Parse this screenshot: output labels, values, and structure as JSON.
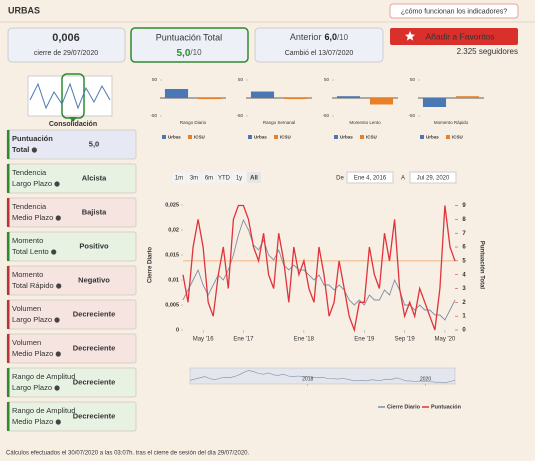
{
  "header": {
    "title": "URBAS",
    "help": "¿cómo funcionan los indicadores?"
  },
  "cards": [
    {
      "value": "0,006",
      "sub": "cierre de 29/07/2020"
    },
    {
      "label": "Puntuación Total",
      "value": "5,0",
      "suffix": "/10"
    },
    {
      "label": "Anterior",
      "value": "6,0",
      "suffix": "/10",
      "sub": "Cambió el 13/07/2020"
    }
  ],
  "favorite": {
    "button": "Añadir a Favoritos",
    "followers": "2.325 seguidores"
  },
  "consolidation": "Consolidación",
  "indicators": [
    {
      "line1": "Puntuación",
      "line2": "Total",
      "value": "5,0",
      "color": "#2e8b2e",
      "border": "#2e8b2e",
      "bg": "#e6e8f4"
    },
    {
      "line1": "Tendencia",
      "line2": "Largo Plazo",
      "value": "Alcista",
      "color": "#2e8b2e",
      "border": "#2e8b2e",
      "bg": "#e7f2e3"
    },
    {
      "line1": "Tendencia",
      "line2": "Medio Plazo",
      "value": "Bajista",
      "color": "#d0312d",
      "border": "#b33",
      "bg": "#f6e4e1"
    },
    {
      "line1": "Momento",
      "line2": "Total Lento",
      "value": "Positivo",
      "color": "#2e8b2e",
      "border": "#2e8b2e",
      "bg": "#e7f2e3"
    },
    {
      "line1": "Momento",
      "line2": "Total Rápido",
      "value": "Negativo",
      "color": "#d0312d",
      "border": "#b33",
      "bg": "#f6e4e1"
    },
    {
      "line1": "Volumen",
      "line2": "Largo Plazo",
      "value": "Decreciente",
      "color": "#d0312d",
      "border": "#b33",
      "bg": "#f6e4e1"
    },
    {
      "line1": "Volumen",
      "line2": "Medio Plazo",
      "value": "Decreciente",
      "color": "#d0312d",
      "border": "#b33",
      "bg": "#f6e4e1"
    },
    {
      "line1": "Rango de Amplitud",
      "line2": "Largo Plazo",
      "value": "Decreciente",
      "color": "#2e8b2e",
      "border": "#2e8b2e",
      "bg": "#e7f2e3"
    },
    {
      "line1": "Rango de Amplitud",
      "line2": "Medio Plazo",
      "value": "Decreciente",
      "color": "#2e8b2e",
      "border": "#2e8b2e",
      "bg": "#e7f2e3"
    }
  ],
  "footer": "Cálculos efectuados el 30/07/2020 a las 03:07h. tras el cierre de sesión del día 29/07/2020.",
  "chart_data": [
    {
      "type": "bar",
      "title": "Rango Diario",
      "categories": [
        "Urbas",
        "ICSU"
      ],
      "values": [
        25,
        -3
      ],
      "colors": [
        "#4a78b5",
        "#e8802a"
      ],
      "ylim": [
        -50,
        50
      ],
      "yticks": [
        -50,
        50
      ]
    },
    {
      "type": "bar",
      "title": "Rango Semanal",
      "categories": [
        "Urbas",
        "ICSU"
      ],
      "values": [
        18,
        -3
      ],
      "colors": [
        "#4a78b5",
        "#e8802a"
      ],
      "ylim": [
        -50,
        50
      ],
      "yticks": [
        -50,
        50
      ]
    },
    {
      "type": "bar",
      "title": "Momento Lento",
      "categories": [
        "Urbas",
        "ICSU"
      ],
      "values": [
        5,
        -18
      ],
      "colors": [
        "#4a78b5",
        "#e8802a"
      ],
      "ylim": [
        -50,
        50
      ],
      "yticks": [
        -50,
        50
      ]
    },
    {
      "type": "bar",
      "title": "Momento Rápido",
      "categories": [
        "Urbas",
        "ICSU"
      ],
      "values": [
        -25,
        5
      ],
      "colors": [
        "#4a78b5",
        "#e8802a"
      ],
      "ylim": [
        -50,
        50
      ],
      "yticks": [
        -50,
        50
      ]
    },
    {
      "type": "line",
      "ylabel": "Cierre Diario",
      "y2label": "Puntuación Total",
      "x": [
        "2016-01",
        "2016-02",
        "2016-03",
        "2016-04",
        "2016-05",
        "2016-06",
        "2016-07",
        "2016-08",
        "2016-09",
        "2016-10",
        "2016-11",
        "2016-12",
        "2017-01",
        "2017-02",
        "2017-03",
        "2017-04",
        "2017-05",
        "2017-06",
        "2017-07",
        "2017-08",
        "2017-09",
        "2017-10",
        "2017-11",
        "2017-12",
        "2018-01",
        "2018-02",
        "2018-03",
        "2018-04",
        "2018-05",
        "2018-06",
        "2018-07",
        "2018-08",
        "2018-09",
        "2018-10",
        "2018-11",
        "2018-12",
        "2019-01",
        "2019-02",
        "2019-03",
        "2019-04",
        "2019-05",
        "2019-06",
        "2019-07",
        "2019-08",
        "2019-09",
        "2019-10",
        "2019-11",
        "2019-12",
        "2020-01",
        "2020-02",
        "2020-03",
        "2020-04",
        "2020-05",
        "2020-06",
        "2020-07"
      ],
      "series": [
        {
          "name": "Cierre Diario",
          "color": "#7f8fa6",
          "values": [
            0.006,
            0.008,
            0.01,
            0.012,
            0.009,
            0.007,
            0.009,
            0.011,
            0.01,
            0.012,
            0.015,
            0.019,
            0.022,
            0.02,
            0.017,
            0.016,
            0.018,
            0.015,
            0.014,
            0.016,
            0.013,
            0.012,
            0.013,
            0.012,
            0.012,
            0.011,
            0.01,
            0.011,
            0.009,
            0.009,
            0.008,
            0.009,
            0.008,
            0.006,
            0.005,
            0.006,
            0.005,
            0.007,
            0.006,
            0.006,
            0.008,
            0.007,
            0.01,
            0.008,
            0.005,
            0.005,
            0.004,
            0.005,
            0.004,
            0.004,
            0.003,
            0.003,
            0.002,
            0.004,
            0.006
          ]
        },
        {
          "name": "Puntuación",
          "color": "#e0333a",
          "axis": "y2",
          "values": [
            4,
            2,
            6,
            8,
            6,
            2,
            1,
            4,
            6,
            3,
            8,
            9,
            9,
            8,
            6,
            5,
            7,
            4,
            3,
            7,
            5,
            2,
            6,
            4,
            5,
            3,
            2,
            6,
            4,
            1,
            2,
            5,
            3,
            1,
            0,
            2,
            2,
            6,
            4,
            3,
            7,
            5,
            8,
            3,
            1,
            2,
            1,
            3,
            2,
            1,
            0,
            3,
            9,
            6,
            5
          ]
        }
      ],
      "xlim": [
        "2016-01",
        "2020-07"
      ],
      "xticks": [
        {
          "value": "2016-05",
          "label": "May '16"
        },
        {
          "value": "2017-01",
          "label": "Ene '17"
        },
        {
          "value": "2018-01",
          "label": "Ene '18"
        },
        {
          "value": "2019-01",
          "label": "Ene '19"
        },
        {
          "value": "2019-09",
          "label": "Sep '19"
        },
        {
          "value": "2020-05",
          "label": "May '20"
        }
      ],
      "ylim": [
        0,
        0.026
      ],
      "yticks": [
        0,
        {
          "value": 0.005,
          "label": "0,005"
        },
        {
          "value": 0.01,
          "label": "0,01"
        },
        {
          "value": 0.015,
          "label": "0,015"
        },
        {
          "value": 0.02,
          "label": "0,02"
        },
        {
          "value": 0.025,
          "label": "0,025"
        }
      ],
      "y2lim": [
        0,
        9.4
      ],
      "y2ticks": [
        0,
        1,
        2,
        3,
        4,
        5,
        6,
        7,
        8,
        9
      ],
      "threshold": 5,
      "threshold_color": "#f0a060",
      "range_buttons": [
        "1m",
        "3m",
        "6m",
        "YTD",
        "1y",
        "All"
      ],
      "range_selected": "All",
      "from_label": "De",
      "from": "Ene 4, 2016",
      "to_label": "A",
      "to": "Jul 29, 2020",
      "navigator_ticks": [
        {
          "value": "2018-01",
          "label": "2018"
        },
        {
          "value": "2020-01",
          "label": "2020"
        }
      ]
    }
  ]
}
